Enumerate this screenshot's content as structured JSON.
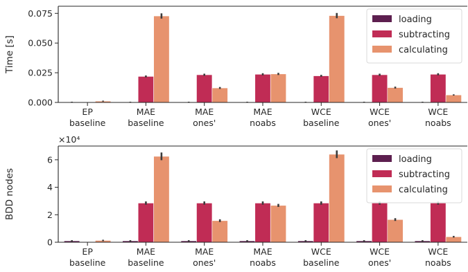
{
  "chart_data": [
    {
      "type": "bar",
      "ylabel": "Time [s]",
      "xlabel": "",
      "categories": [
        [
          "EP",
          "baseline"
        ],
        [
          "MAE",
          "baseline"
        ],
        [
          "MAE",
          "ones'"
        ],
        [
          "MAE",
          "noabs"
        ],
        [
          "WCE",
          "baseline"
        ],
        [
          "WCE",
          "ones'"
        ],
        [
          "WCE",
          "noabs"
        ]
      ],
      "ylim": [
        0,
        0.081
      ],
      "yticks": [
        0,
        0.025,
        0.05,
        0.075
      ],
      "ytick_labels": [
        "0.000",
        "0.025",
        "0.050",
        "0.075"
      ],
      "offset_text": "",
      "legend_position": "top-right",
      "series": [
        {
          "name": "loading",
          "color": "#5d1f4f",
          "values": [
            0.0003,
            0.0003,
            0.0003,
            0.0003,
            0.0003,
            0.0003,
            0.0003
          ],
          "err": [
            0.0003,
            0.0003,
            0.0003,
            0.0003,
            0.0003,
            0.0003,
            0.0003
          ]
        },
        {
          "name": "subtracting",
          "color": "#c02c55",
          "values": [
            0.0,
            0.0219,
            0.0233,
            0.0237,
            0.0224,
            0.0233,
            0.0237
          ],
          "err": [
            0.0,
            0.0008,
            0.0009,
            0.0009,
            0.0008,
            0.0009,
            0.0009
          ]
        },
        {
          "name": "calculating",
          "color": "#e7936e",
          "values": [
            0.0011,
            0.0728,
            0.0122,
            0.024,
            0.0731,
            0.0125,
            0.0063
          ],
          "err": [
            0.0004,
            0.0022,
            0.0008,
            0.0009,
            0.0022,
            0.0008,
            0.0005
          ]
        }
      ]
    },
    {
      "type": "bar",
      "ylabel": "BDD nodes",
      "xlabel": "",
      "categories": [
        [
          "EP",
          "baseline"
        ],
        [
          "MAE",
          "baseline"
        ],
        [
          "MAE",
          "ones'"
        ],
        [
          "MAE",
          "noabs"
        ],
        [
          "WCE",
          "baseline"
        ],
        [
          "WCE",
          "ones'"
        ],
        [
          "WCE",
          "noabs"
        ]
      ],
      "ylim": [
        0,
        70000
      ],
      "yticks": [
        0,
        20000,
        40000,
        60000
      ],
      "ytick_labels": [
        "0",
        "2",
        "4",
        "6"
      ],
      "offset_text": "×10⁴",
      "legend_position": "top-right",
      "series": [
        {
          "name": "loading",
          "color": "#5d1f4f",
          "values": [
            1000,
            1000,
            1000,
            1000,
            1000,
            1000,
            1000
          ],
          "err": [
            500,
            500,
            500,
            500,
            500,
            500,
            500
          ]
        },
        {
          "name": "subtracting",
          "color": "#c02c55",
          "values": [
            0,
            28500,
            28500,
            28500,
            28500,
            28500,
            28500
          ],
          "err": [
            0,
            1200,
            1200,
            1200,
            1200,
            1200,
            1200
          ]
        },
        {
          "name": "calculating",
          "color": "#e7936e",
          "values": [
            1300,
            62500,
            15700,
            26800,
            64000,
            16500,
            4000
          ],
          "err": [
            500,
            2800,
            1000,
            1100,
            2800,
            1000,
            600
          ]
        }
      ]
    }
  ]
}
